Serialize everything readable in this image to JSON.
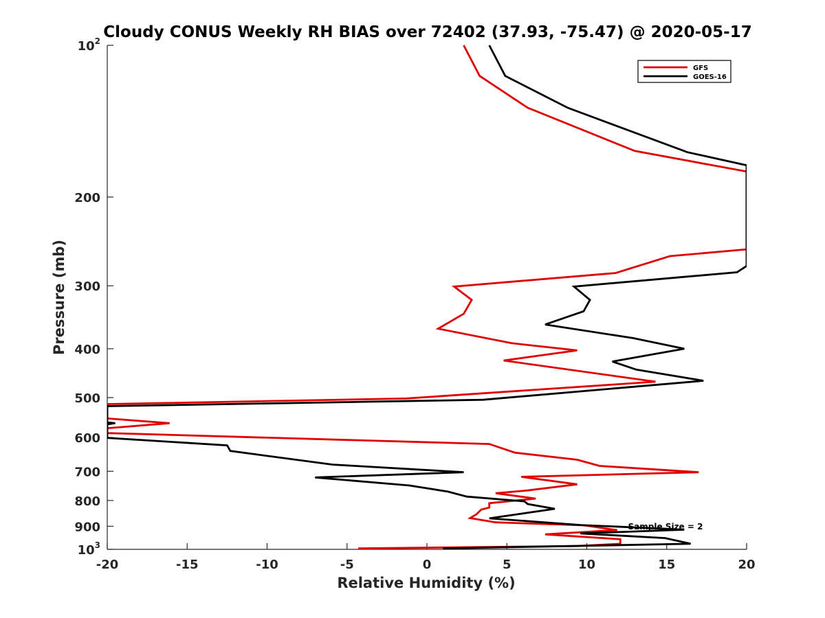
{
  "chart_data": {
    "type": "line",
    "title": "Cloudy CONUS Weekly RH BIAS over 72402 (37.93, -75.47) @ 2020-05-17",
    "xlabel": "Relative Humidity (%)",
    "ylabel": "Pressure (mb)",
    "xlim": [
      -20,
      20
    ],
    "ylim": [
      100,
      1000
    ],
    "y_scale": "log",
    "y_reversed": true,
    "x_ticks": [
      -20,
      -15,
      -10,
      -5,
      0,
      5,
      10,
      15,
      20
    ],
    "x_tick_labels": [
      "-20",
      "-15",
      "-10",
      "-5",
      "0",
      "5",
      "10",
      "15",
      "20"
    ],
    "y_ticks": [
      100,
      200,
      300,
      400,
      500,
      600,
      700,
      800,
      900,
      1000
    ],
    "y_tick_labels": [
      {
        "base": "10",
        "sup": "2"
      },
      {
        "base": "200",
        "sup": ""
      },
      {
        "base": "300",
        "sup": ""
      },
      {
        "base": "400",
        "sup": ""
      },
      {
        "base": "500",
        "sup": ""
      },
      {
        "base": "600",
        "sup": ""
      },
      {
        "base": "700",
        "sup": ""
      },
      {
        "base": "800",
        "sup": ""
      },
      {
        "base": "900",
        "sup": ""
      },
      {
        "base": "10",
        "sup": "3"
      }
    ],
    "grid": false,
    "legend_position": "top-right",
    "annotation": "Sample Size = 2",
    "series": [
      {
        "name": "GFS",
        "color": "#e00000",
        "points": [
          [
            2.3,
            100
          ],
          [
            3.3,
            115
          ],
          [
            6.3,
            133
          ],
          [
            13,
            162
          ],
          [
            20,
            178
          ],
          [
            20,
            254
          ],
          [
            15.2,
            262
          ],
          [
            11.8,
            283
          ],
          [
            1.7,
            301
          ],
          [
            2.8,
            320
          ],
          [
            2.3,
            341
          ],
          [
            0.7,
            365
          ],
          [
            5.3,
            390
          ],
          [
            9.4,
            403
          ],
          [
            4.8,
            422
          ],
          [
            14.3,
            465
          ],
          [
            -1.3,
            502
          ],
          [
            -20,
            515
          ],
          [
            -20,
            550
          ],
          [
            -16.1,
            562
          ],
          [
            -20,
            575
          ],
          [
            -20,
            588
          ],
          [
            3.9,
            618
          ],
          [
            5.5,
            643
          ],
          [
            9.4,
            664
          ],
          [
            10.8,
            683
          ],
          [
            17,
            703
          ],
          [
            5.9,
            718
          ],
          [
            9.4,
            743
          ],
          [
            6.3,
            764
          ],
          [
            4.3,
            774
          ],
          [
            6.8,
            793
          ],
          [
            3.9,
            810
          ],
          [
            3.9,
            826
          ],
          [
            3.4,
            834
          ],
          [
            3.1,
            852
          ],
          [
            2.7,
            867
          ],
          [
            4.3,
            884
          ],
          [
            9.8,
            896
          ],
          [
            11.9,
            916
          ],
          [
            7.4,
            934
          ],
          [
            12.1,
            955
          ],
          [
            12.1,
            975
          ],
          [
            9.4,
            985
          ],
          [
            -4.3,
            996
          ]
        ]
      },
      {
        "name": "GOES-16",
        "color": "#000000",
        "points": [
          [
            3.9,
            100
          ],
          [
            4.9,
            115
          ],
          [
            8.8,
            133
          ],
          [
            16.3,
            163
          ],
          [
            20,
            173
          ],
          [
            20,
            274
          ],
          [
            19.4,
            282
          ],
          [
            9.2,
            301
          ],
          [
            10.2,
            320
          ],
          [
            9.8,
            337
          ],
          [
            7.4,
            358
          ],
          [
            12.9,
            381
          ],
          [
            16.1,
            400
          ],
          [
            11.6,
            424
          ],
          [
            13.1,
            440
          ],
          [
            17.3,
            463
          ],
          [
            3.5,
            505
          ],
          [
            -20,
            520
          ],
          [
            -20,
            560
          ],
          [
            -19.5,
            562
          ],
          [
            -20,
            565
          ],
          [
            -20,
            601
          ],
          [
            -12.5,
            622
          ],
          [
            -12.3,
            638
          ],
          [
            -5.9,
            679
          ],
          [
            2.3,
            703
          ],
          [
            -7,
            720
          ],
          [
            -1.1,
            747
          ],
          [
            1.3,
            768
          ],
          [
            2.5,
            786
          ],
          [
            6.1,
            803
          ],
          [
            6.3,
            813
          ],
          [
            8,
            831
          ],
          [
            3.9,
            868
          ],
          [
            9.6,
            895
          ],
          [
            16.1,
            914
          ],
          [
            9.6,
            930
          ],
          [
            14.9,
            950
          ],
          [
            16.5,
            975
          ],
          [
            1,
            996
          ]
        ]
      }
    ]
  }
}
